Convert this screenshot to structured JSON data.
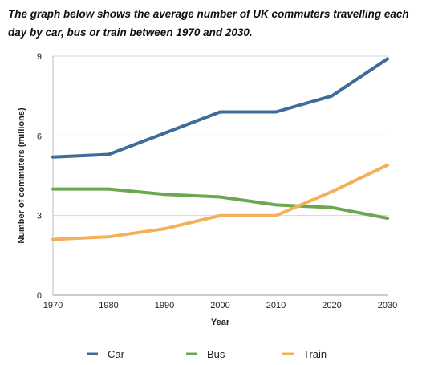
{
  "caption": "The graph below shows the average number of UK commuters travelling each day by car, bus or train between 1970 and 2030.",
  "chart_data": {
    "type": "line",
    "title": "",
    "xlabel": "Year",
    "ylabel": "Number of commuters (millions)",
    "x": [
      "1970",
      "1980",
      "1990",
      "2000",
      "2010",
      "2020",
      "2030"
    ],
    "ylim": [
      0,
      9
    ],
    "yticks": [
      "0",
      "3",
      "6",
      "9"
    ],
    "grid": "horizontal",
    "legend_position": "bottom",
    "series": [
      {
        "name": "Car",
        "color": "#3f6c98",
        "values": [
          5.2,
          5.3,
          6.1,
          6.9,
          6.9,
          7.5,
          8.9
        ]
      },
      {
        "name": "Bus",
        "color": "#6aa84f",
        "values": [
          4.0,
          4.0,
          3.8,
          3.7,
          3.4,
          3.3,
          2.9
        ]
      },
      {
        "name": "Train",
        "color": "#f3b05a",
        "values": [
          2.1,
          2.2,
          2.5,
          3.0,
          3.0,
          3.9,
          4.9
        ]
      }
    ]
  }
}
